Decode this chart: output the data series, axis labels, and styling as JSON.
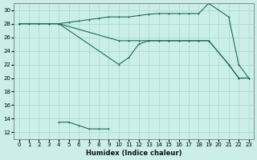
{
  "xlabel": "Humidex (Indice chaleur)",
  "bg_color": "#cceee8",
  "grid_color": "#aaddcc",
  "line_color": "#1a6b5a",
  "xlim": [
    -0.5,
    23.5
  ],
  "ylim": [
    11,
    31
  ],
  "xticks": [
    0,
    1,
    2,
    3,
    4,
    5,
    6,
    7,
    8,
    9,
    10,
    11,
    12,
    13,
    14,
    15,
    16,
    17,
    18,
    19,
    20,
    21,
    22,
    23
  ],
  "yticks": [
    12,
    14,
    16,
    18,
    20,
    22,
    24,
    26,
    28,
    30
  ],
  "lines": [
    {
      "x": [
        0,
        1,
        2,
        3,
        4,
        5,
        6,
        7,
        8,
        9,
        10,
        11,
        12,
        13,
        14,
        15,
        16,
        17,
        18,
        19,
        21,
        22,
        23
      ],
      "y": [
        28,
        28,
        28,
        28,
        28,
        28.2,
        28.4,
        28.6,
        28.8,
        29,
        29,
        29,
        29.2,
        29.4,
        29.5,
        29.5,
        29.5,
        29.5,
        29.5,
        31,
        29,
        22,
        20
      ]
    },
    {
      "x": [
        0,
        3,
        4,
        10,
        11,
        12,
        13,
        14,
        15,
        16,
        17,
        18,
        19,
        21,
        22,
        23
      ],
      "y": [
        28,
        28,
        28,
        25.5,
        25.5,
        25.5,
        25.5,
        25.5,
        25.5,
        25.5,
        25.5,
        25.5,
        25.5,
        22,
        20,
        20
      ]
    },
    {
      "x": [
        0,
        3,
        4,
        10,
        11,
        12,
        13,
        14,
        15,
        16,
        17,
        18,
        19,
        21,
        22,
        23
      ],
      "y": [
        28,
        28,
        28,
        22,
        23,
        25,
        25.5,
        25.5,
        25.5,
        25.5,
        25.5,
        25.5,
        25.5,
        22,
        20,
        20
      ]
    },
    {
      "x": [
        4,
        5,
        6,
        7,
        8,
        9
      ],
      "y": [
        13.5,
        13.5,
        13,
        12.5,
        12.5,
        12.5
      ]
    }
  ]
}
